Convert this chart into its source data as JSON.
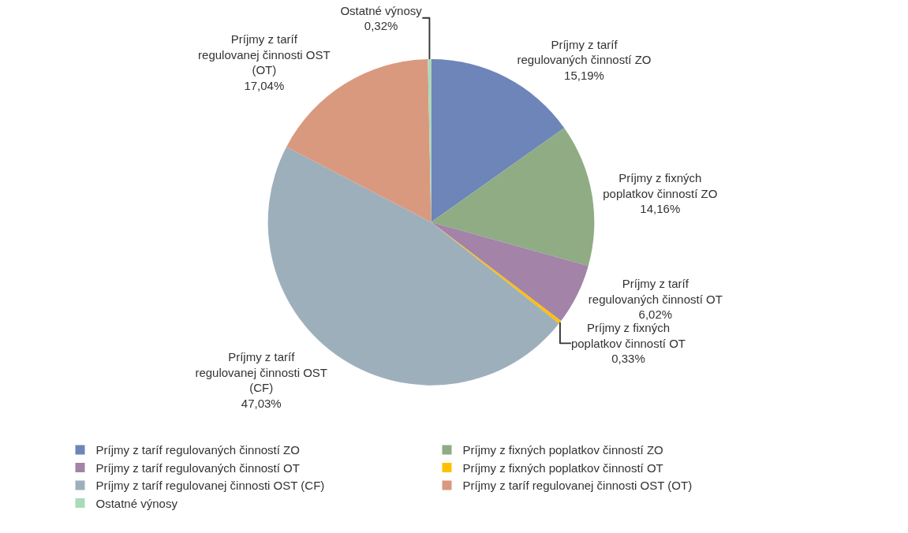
{
  "chart_data": {
    "type": "pie",
    "categories": [
      "Príjmy z taríf regulovaných činností ZO",
      "Príjmy z fixných poplatkov činností ZO",
      "Príjmy z taríf regulovaných činností OT",
      "Príjmy z fixných poplatkov činností OT",
      "Príjmy z taríf regulovanej činnosti OST (CF)",
      "Príjmy z taríf regulovanej činnosti OST (OT)",
      "Ostatné výnosy"
    ],
    "values": [
      15.19,
      14.16,
      6.02,
      0.33,
      47.03,
      17.04,
      0.32
    ],
    "value_labels": [
      "15,19%",
      "14,16%",
      "6,02%",
      "0,33%",
      "47,03%",
      "17,04%",
      "0,32%"
    ],
    "colors": [
      "#6d85b8",
      "#8fac84",
      "#a383a8",
      "#ffc000",
      "#9eafbc",
      "#d9997f",
      "#a9dbb5"
    ],
    "legend": "bottom"
  }
}
